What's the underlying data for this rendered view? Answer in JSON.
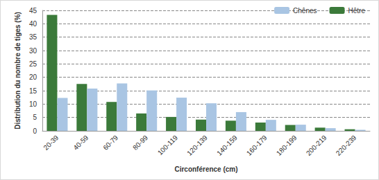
{
  "chart_data": {
    "type": "bar",
    "x_label": "Circonférence (cm)",
    "y_label": "Distribution du nombre de tiges (%)",
    "categories": [
      "20-39",
      "40-59",
      "60-79",
      "80-99",
      "100-119",
      "120-139",
      "140-159",
      "160-179",
      "180-199",
      "200-219",
      "220-239"
    ],
    "series": [
      {
        "name": "Hêtre",
        "color": "#3b7a3a",
        "values": [
          43.3,
          17.5,
          10.8,
          6.5,
          5.2,
          4.2,
          3.8,
          3.1,
          2.2,
          1.2,
          0.6
        ]
      },
      {
        "name": "Chênes",
        "color": "#a9c5e3",
        "values": [
          12.3,
          15.8,
          17.7,
          15.1,
          12.4,
          10.3,
          7.0,
          4.1,
          2.3,
          1.0,
          0.4
        ]
      }
    ],
    "ylim": [
      0,
      45
    ],
    "yticks": [
      0,
      5,
      10,
      15,
      20,
      25,
      30,
      35,
      40,
      45
    ],
    "grid": true,
    "legend": "top-right"
  }
}
